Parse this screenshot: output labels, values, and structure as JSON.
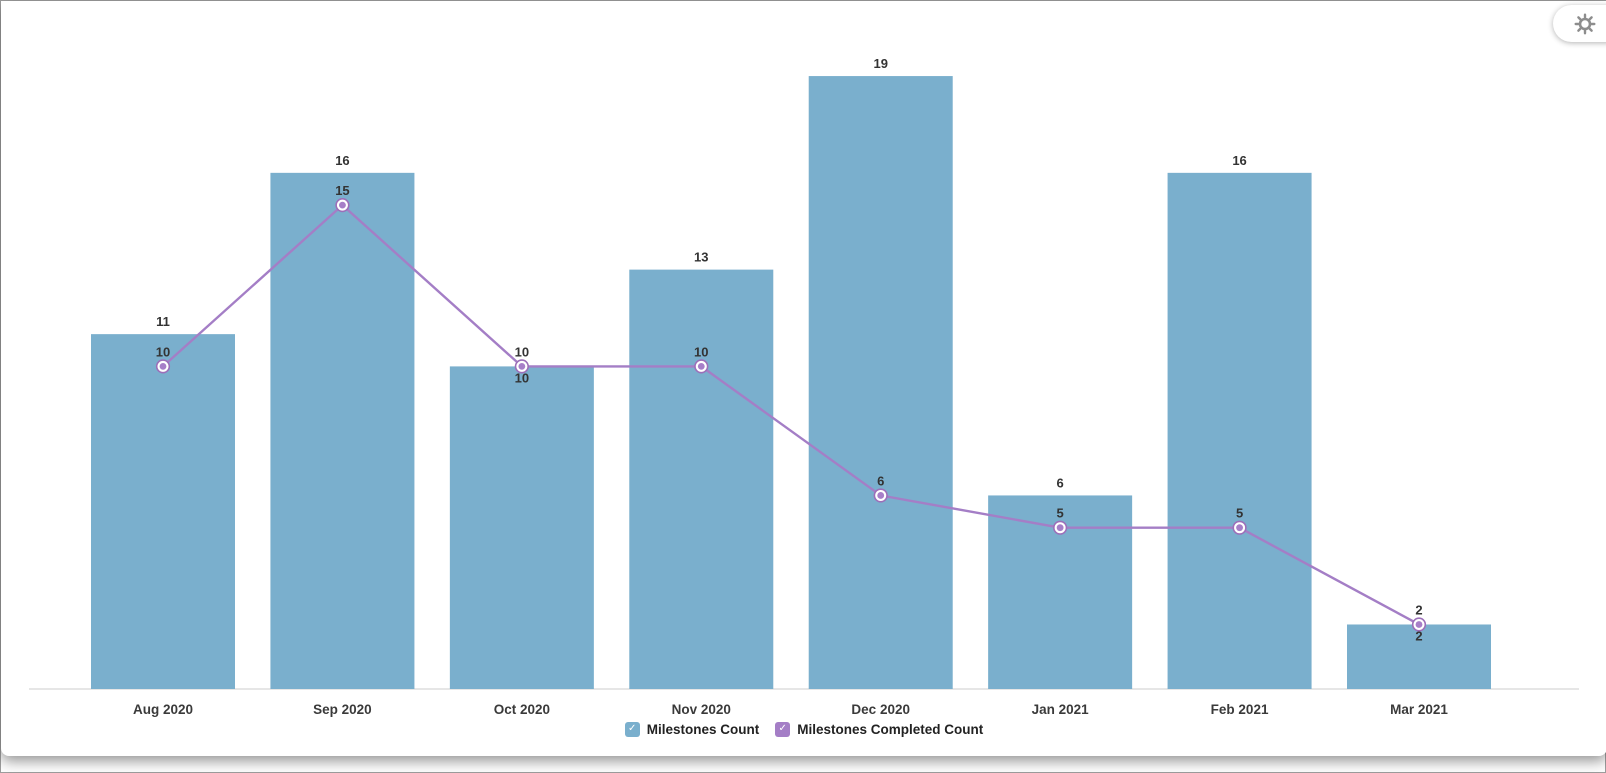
{
  "toolbar": {
    "settings_icon": "gear-icon"
  },
  "legend": {
    "check_glyph": "✓"
  },
  "chart_data": {
    "type": "combo-bar-line",
    "title": "",
    "categories": [
      "Aug 2020",
      "Sep 2020",
      "Oct 2020",
      "Nov 2020",
      "Dec 2020",
      "Jan 2021",
      "Feb 2021",
      "Mar 2021"
    ],
    "series": [
      {
        "name": "Milestones Count",
        "type": "bar",
        "color": "#7AAFCD",
        "checked": true,
        "values": [
          11,
          16,
          10,
          13,
          19,
          6,
          16,
          2
        ]
      },
      {
        "name": "Milestones Completed Count",
        "type": "line",
        "color": "#A47EC6",
        "marker_stroke": "#9C6FB9",
        "marker_fill": "#A77FC8",
        "checked": true,
        "values": [
          10,
          15,
          10,
          10,
          6,
          5,
          5,
          2
        ]
      }
    ],
    "xlabel": "",
    "ylabel": "",
    "ylim": [
      0,
      20
    ],
    "grid": false,
    "value_labels": true,
    "legend_position": "bottom",
    "axis_line_color": "#DDDDDD",
    "value_label_color": "#333333",
    "axis_label_color": "#3A3A3A"
  }
}
